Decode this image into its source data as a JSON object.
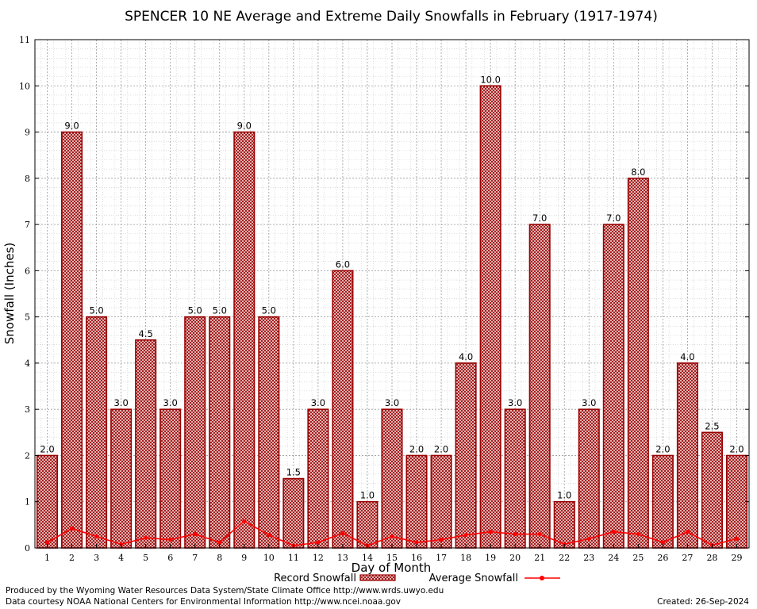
{
  "chart_data": {
    "type": "bar",
    "title": "SPENCER 10 NE Average and Extreme Daily Snowfalls in February (1917-1974)",
    "xlabel": "Day of Month",
    "ylabel": "Snowfall (Inches)",
    "ylim": [
      0,
      11
    ],
    "yticks": [
      "0",
      "1",
      "2",
      "3",
      "4",
      "5",
      "6",
      "7",
      "8",
      "9",
      "10",
      "11"
    ],
    "grid": true,
    "legend_position": "bottom",
    "categories": [
      "1",
      "2",
      "3",
      "4",
      "5",
      "6",
      "7",
      "8",
      "9",
      "10",
      "11",
      "12",
      "13",
      "14",
      "15",
      "16",
      "17",
      "18",
      "19",
      "20",
      "21",
      "22",
      "23",
      "24",
      "25",
      "26",
      "27",
      "28",
      "29"
    ],
    "series": [
      {
        "name": "Record Snowfall",
        "kind": "bar",
        "color": "#990000",
        "values": [
          2.0,
          9.0,
          5.0,
          3.0,
          4.5,
          3.0,
          5.0,
          5.0,
          9.0,
          5.0,
          1.5,
          3.0,
          6.0,
          1.0,
          3.0,
          2.0,
          2.0,
          4.0,
          10.0,
          3.0,
          7.0,
          1.0,
          3.0,
          7.0,
          8.0,
          2.0,
          4.0,
          2.5,
          2.0
        ],
        "labels": [
          "2.0",
          "9.0",
          "5.0",
          "3.0",
          "4.5",
          "3.0",
          "5.0",
          "5.0",
          "9.0",
          "5.0",
          "1.5",
          "3.0",
          "6.0",
          "1.0",
          "3.0",
          "2.0",
          "2.0",
          "4.0",
          "10.0",
          "3.0",
          "7.0",
          "1.0",
          "3.0",
          "7.0",
          "8.0",
          "2.0",
          "4.0",
          "2.5",
          "2.0"
        ]
      },
      {
        "name": "Average Snowfall",
        "kind": "line",
        "color": "#ff0000",
        "values": [
          0.12,
          0.42,
          0.25,
          0.08,
          0.22,
          0.18,
          0.3,
          0.12,
          0.58,
          0.28,
          0.05,
          0.12,
          0.32,
          0.05,
          0.25,
          0.12,
          0.18,
          0.28,
          0.35,
          0.3,
          0.3,
          0.08,
          0.2,
          0.35,
          0.3,
          0.12,
          0.35,
          0.06,
          0.2
        ]
      }
    ]
  },
  "footer": {
    "produced_by": "Produced by the Wyoming Water Resources Data System/State Climate Office http://www.wrds.uwyo.edu",
    "data_courtesy": "Data courtesy NOAA National Centers for Environmental Information http://www.ncei.noaa.gov",
    "created": "Created:  26-Sep-2024"
  }
}
